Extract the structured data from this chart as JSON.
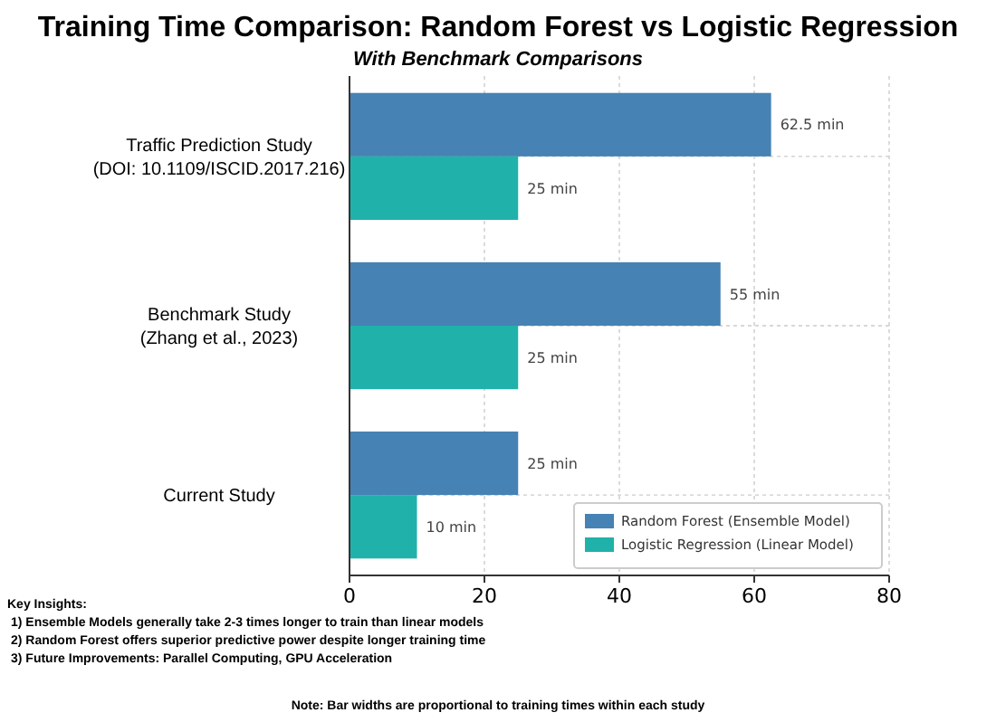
{
  "chart_data": {
    "type": "bar",
    "orientation": "horizontal",
    "title": "Training Time Comparison: Random Forest vs Logistic Regression",
    "subtitle": "With Benchmark Comparisons",
    "categories": [
      "Traffic Prediction Study\n(DOI: 10.1109/ISCID.2017.216)",
      "Benchmark Study\n(Zhang et al., 2023)",
      "Current Study"
    ],
    "series": [
      {
        "name": "Random Forest (Ensemble Model)",
        "color": "#4682b4",
        "values": [
          62.5,
          55,
          25
        ],
        "value_labels": [
          "62.5 min",
          "55 min",
          "25 min"
        ]
      },
      {
        "name": "Logistic Regression (Linear Model)",
        "color": "#20b2aa",
        "values": [
          25,
          25,
          10
        ],
        "value_labels": [
          "25 min",
          "25 min",
          "10 min"
        ]
      }
    ],
    "xlim": [
      0,
      80
    ],
    "xticks": [
      0,
      20,
      40,
      60,
      80
    ],
    "grid": true,
    "legend": "bottom right",
    "annotations": [
      "Key Insights:",
      "1) Ensemble Models generally take 2-3 times longer to train than linear models",
      "2) Random Forest offers superior predictive power despite longer training time",
      "3) Future Improvements: Parallel Computing, GPU Acceleration",
      "Note: Bar widths are proportional to training times within each study"
    ]
  }
}
